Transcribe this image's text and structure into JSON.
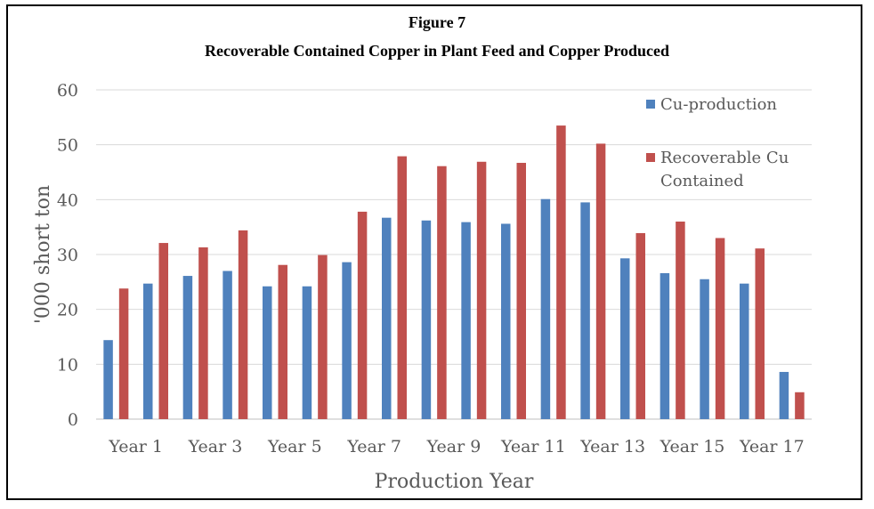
{
  "figure_label": "Figure 7",
  "chart_data": {
    "type": "bar",
    "title": "Recoverable Contained Copper in Plant Feed and Copper Produced",
    "xlabel": "Production Year",
    "ylabel": "'000 short ton",
    "ylim": [
      0,
      60
    ],
    "yticks": [
      0,
      10,
      20,
      30,
      40,
      50,
      60
    ],
    "grid": true,
    "legend_position": "right",
    "categories": [
      "Year 1",
      "Year 2",
      "Year 3",
      "Year 4",
      "Year 5",
      "Year 6",
      "Year 7",
      "Year 8",
      "Year 9",
      "Year 10",
      "Year 11",
      "Year 12",
      "Year 13",
      "Year 14",
      "Year 15",
      "Year 16",
      "Year 17",
      "Year 18"
    ],
    "shown_category_labels": [
      "Year 1",
      "Year 3",
      "Year 5",
      "Year 7",
      "Year 9",
      "Year 11",
      "Year 13",
      "Year 15",
      "Year 17"
    ],
    "series": [
      {
        "name": "Cu-production",
        "color": "#4F81BD",
        "values": [
          14.4,
          24.7,
          26.1,
          27.0,
          24.2,
          24.2,
          28.6,
          36.7,
          36.2,
          35.9,
          35.6,
          40.1,
          39.5,
          29.3,
          26.6,
          25.5,
          24.7,
          8.6
        ]
      },
      {
        "name": "Recoverable Cu Contained",
        "legend_lines": [
          "Recoverable Cu",
          "Contained"
        ],
        "color": "#C0504D",
        "values": [
          23.8,
          32.1,
          31.3,
          34.4,
          28.1,
          29.9,
          37.8,
          47.9,
          46.1,
          46.9,
          46.7,
          53.5,
          50.2,
          33.9,
          36.0,
          33.0,
          31.1,
          4.9
        ]
      }
    ]
  }
}
